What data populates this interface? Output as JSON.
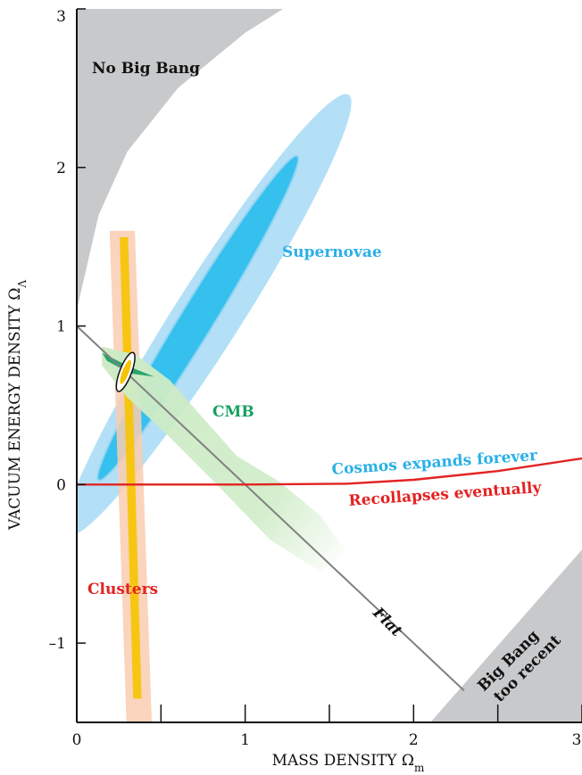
{
  "chart_data": {
    "type": "scatter",
    "xlabel": "MASS DENSITY Ω",
    "xlabel_sub": "m",
    "ylabel": "VACUUM ENERGY DENSITY Ω",
    "ylabel_sub": "Λ",
    "xlim": [
      0,
      3
    ],
    "ylim": [
      -1.5,
      3
    ],
    "x_ticks": [
      0,
      1,
      2,
      3
    ],
    "y_ticks": [
      -1,
      0,
      1,
      2,
      3
    ],
    "x_tick_labels": [
      "0",
      "1",
      "2",
      "3"
    ],
    "y_tick_labels": [
      "–1",
      "0",
      "1",
      "2",
      "3"
    ],
    "grid": false,
    "colors": {
      "excluded": "#c8c9cb",
      "supernovae_outer": "#b3e0f7",
      "supernovae_inner": "#35c0ee",
      "cmb": "#cdebc5",
      "cmb_core": "#27a56b",
      "clusters_outer": "#f9cdb0",
      "clusters_inner": "#f6c400",
      "expansion_line": "#e32222",
      "flat_line": "#808080",
      "supernovae_text": "#2ab0e7",
      "cmb_text": "#17a060",
      "red_text": "#e32222"
    },
    "labels": {
      "no_big_bang": "No Big Bang",
      "supernovae": "Supernovae",
      "cmb": "CMB",
      "clusters": "Clusters",
      "expands": "Cosmos expands forever",
      "recollapses": "Recollapses eventually",
      "flat": "Flat",
      "big_bang_line1": "Big Bang",
      "big_bang_line2": "too recent"
    },
    "regions": {
      "no_big_bang_boundary": [
        [
          0,
          1.1
        ],
        [
          0.13,
          1.7
        ],
        [
          0.3,
          2.1
        ],
        [
          0.6,
          2.5
        ],
        [
          1.0,
          2.85
        ],
        [
          1.3,
          3.05
        ]
      ],
      "big_bang_too_recent_boundary": [
        [
          2.1,
          -1.5
        ],
        [
          3.05,
          -0.35
        ]
      ],
      "supernovae_68": {
        "center": [
          0.72,
          1.05
        ],
        "semi_major": 1.18,
        "semi_minor": 0.1,
        "angle_deg": 60
      },
      "supernovae_95": {
        "center": [
          0.78,
          1.07
        ],
        "semi_major": 1.62,
        "semi_minor": 0.2,
        "angle_deg": 59
      },
      "cmb_band": [
        [
          0.15,
          0.87
        ],
        [
          0.35,
          0.82
        ],
        [
          0.55,
          0.66
        ],
        [
          0.75,
          0.42
        ],
        [
          0.95,
          0.18
        ],
        [
          1.2,
          0.02
        ],
        [
          1.45,
          -0.2
        ],
        [
          1.6,
          -0.42
        ],
        [
          1.45,
          -0.55
        ],
        [
          1.15,
          -0.35
        ],
        [
          0.85,
          -0.02
        ],
        [
          0.55,
          0.3
        ],
        [
          0.3,
          0.55
        ],
        [
          0.15,
          0.75
        ]
      ],
      "cmb_core": [
        [
          0.15,
          0.83
        ],
        [
          0.32,
          0.74
        ],
        [
          0.46,
          0.68
        ],
        [
          0.32,
          0.7
        ],
        [
          0.18,
          0.78
        ]
      ],
      "clusters_outer": {
        "top": [
          0.27,
          1.6
        ],
        "bottom": [
          0.37,
          -1.5
        ],
        "half_width": 0.075
      },
      "clusters_inner": {
        "top": [
          0.28,
          1.56
        ],
        "bottom": [
          0.36,
          -1.35
        ],
        "half_width": 0.025
      },
      "concordance": {
        "center": [
          0.29,
          0.71
        ],
        "semi_major": 0.13,
        "semi_minor": 0.035,
        "angle_deg": 70
      }
    },
    "lines": {
      "flat": [
        [
          0,
          1
        ],
        [
          2.3,
          -1.3
        ]
      ],
      "expansion": [
        [
          0,
          0
        ],
        [
          1.0,
          0.0
        ],
        [
          1.6,
          0.005
        ],
        [
          2.0,
          0.03
        ],
        [
          2.5,
          0.085
        ],
        [
          3.0,
          0.165
        ]
      ]
    }
  }
}
